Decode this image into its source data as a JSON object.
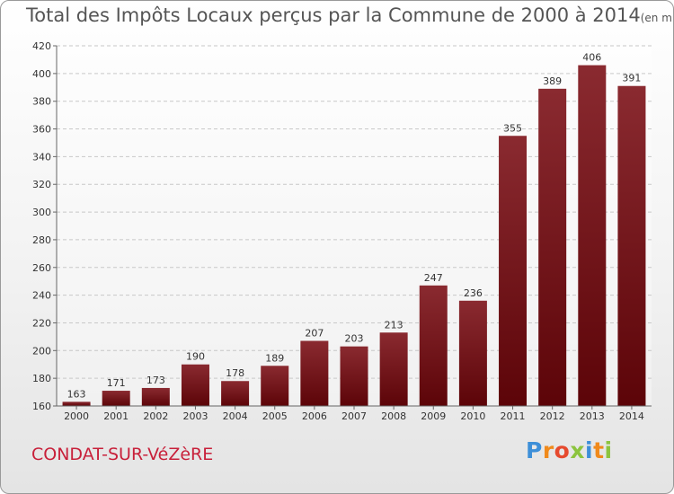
{
  "chart_data": {
    "type": "bar",
    "title": "Total des Impôts Locaux perçus par la Commune de 2000 à 2014",
    "unit": "(en milliers d'€)",
    "categories": [
      "2000",
      "2001",
      "2002",
      "2003",
      "2004",
      "2005",
      "2006",
      "2007",
      "2008",
      "2009",
      "2010",
      "2011",
      "2012",
      "2013",
      "2014"
    ],
    "values": [
      163,
      171,
      173,
      190,
      178,
      189,
      207,
      203,
      213,
      247,
      236,
      355,
      389,
      406,
      391
    ],
    "ylim": [
      160,
      420
    ],
    "yticks": [
      160,
      180,
      200,
      220,
      240,
      260,
      280,
      300,
      320,
      340,
      360,
      380,
      400,
      420
    ],
    "grid": true,
    "xlabel": "",
    "ylabel": "",
    "bar_color": "#7a1418"
  },
  "commune": "CONDAT-SUR-VéZèRE",
  "logo": {
    "letters": [
      "P",
      "r",
      "o",
      "x",
      "i",
      "t",
      "i"
    ],
    "colors": [
      "#3d8fd8",
      "#f08a1c",
      "#e64a2e",
      "#8cc43e",
      "#3d8fd8",
      "#f08a1c",
      "#8cc43e"
    ]
  }
}
